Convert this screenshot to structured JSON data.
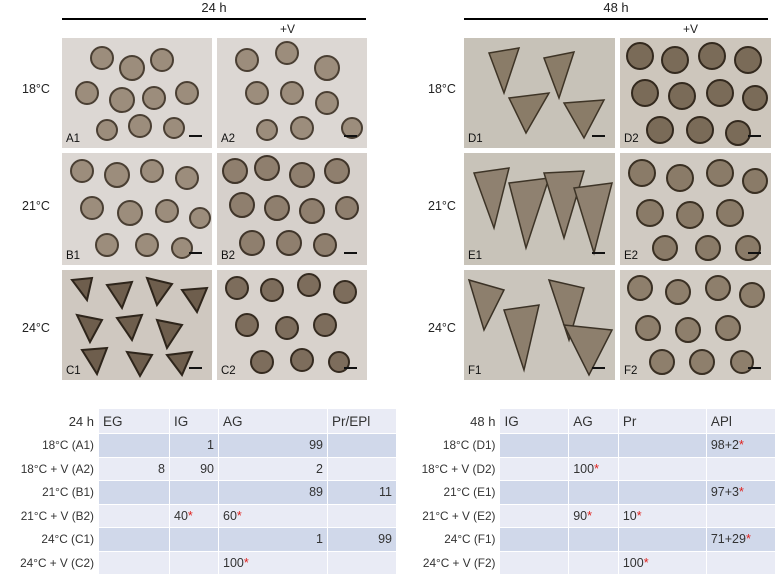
{
  "panels": {
    "left_time": "24 h",
    "right_time": "48 h",
    "plus_v_left": "+V",
    "plus_v_right": "+V",
    "temps_left": [
      "18°C",
      "21°C",
      "24°C"
    ],
    "temps_right": [
      "18°C",
      "21°C",
      "24°C"
    ],
    "photos_left": [
      [
        "A1",
        "A2"
      ],
      [
        "B1",
        "B2"
      ],
      [
        "C1",
        "C2"
      ]
    ],
    "photos_right": [
      [
        "D1",
        "D2"
      ],
      [
        "E1",
        "E2"
      ],
      [
        "F1",
        "F2"
      ]
    ]
  },
  "colors": {
    "table_light": "#e9ebf5",
    "table_dark": "#d0d8ea",
    "asterisk": "#e0201c",
    "photo_bg_24h": "#ddd8d4",
    "photo_bg_48h": "#c9c4bb"
  },
  "table_24h": {
    "corner": "24 h",
    "headers": [
      "EG",
      "IG",
      "AG",
      "Pr/EPl"
    ],
    "rows": [
      {
        "label": "18°C (A1)",
        "cells": [
          [
            "",
            ""
          ],
          [
            "1",
            ""
          ],
          [
            "99",
            ""
          ],
          [
            "",
            ""
          ]
        ]
      },
      {
        "label": "18°C + V (A2)",
        "cells": [
          [
            "8",
            ""
          ],
          [
            "90",
            ""
          ],
          [
            "2",
            ""
          ],
          [
            "",
            ""
          ]
        ]
      },
      {
        "label": "21°C (B1)",
        "cells": [
          [
            "",
            ""
          ],
          [
            "",
            ""
          ],
          [
            "89",
            ""
          ],
          [
            "11",
            ""
          ]
        ]
      },
      {
        "label": "21°C + V (B2)",
        "cells": [
          [
            "",
            ""
          ],
          [
            "40",
            "*"
          ],
          [
            "60",
            "*"
          ],
          [
            "",
            ""
          ]
        ]
      },
      {
        "label": "24°C (C1)",
        "cells": [
          [
            "",
            ""
          ],
          [
            "",
            ""
          ],
          [
            "1",
            ""
          ],
          [
            "99",
            ""
          ]
        ]
      },
      {
        "label": "24°C + V (C2)",
        "cells": [
          [
            "",
            ""
          ],
          [
            "",
            ""
          ],
          [
            "100",
            "*"
          ],
          [
            "",
            ""
          ]
        ]
      }
    ]
  },
  "table_48h": {
    "corner": "48 h",
    "headers": [
      "IG",
      "AG",
      "Pr",
      "APl"
    ],
    "rows": [
      {
        "label": "18°C (D1)",
        "cells": [
          [
            "",
            ""
          ],
          [
            "",
            ""
          ],
          [
            "",
            ""
          ],
          [
            "98+2",
            "*"
          ]
        ]
      },
      {
        "label": "18°C + V (D2)",
        "cells": [
          [
            "",
            ""
          ],
          [
            "100",
            "*"
          ],
          [
            "",
            ""
          ],
          [
            "",
            ""
          ]
        ]
      },
      {
        "label": "21°C (E1)",
        "cells": [
          [
            "",
            ""
          ],
          [
            "",
            ""
          ],
          [
            "",
            ""
          ],
          [
            "97+3",
            "*"
          ]
        ]
      },
      {
        "label": "21°C + V (E2)",
        "cells": [
          [
            "",
            ""
          ],
          [
            "90",
            "*"
          ],
          [
            "10",
            "*"
          ],
          [
            "",
            ""
          ]
        ]
      },
      {
        "label": "24°C (F1)",
        "cells": [
          [
            "",
            ""
          ],
          [
            "",
            ""
          ],
          [
            "",
            ""
          ],
          [
            "71+29",
            "*"
          ]
        ]
      },
      {
        "label": "24°C + V (F2)",
        "cells": [
          [
            "",
            ""
          ],
          [
            "",
            ""
          ],
          [
            "100",
            "*"
          ],
          [
            "",
            ""
          ]
        ]
      }
    ]
  }
}
